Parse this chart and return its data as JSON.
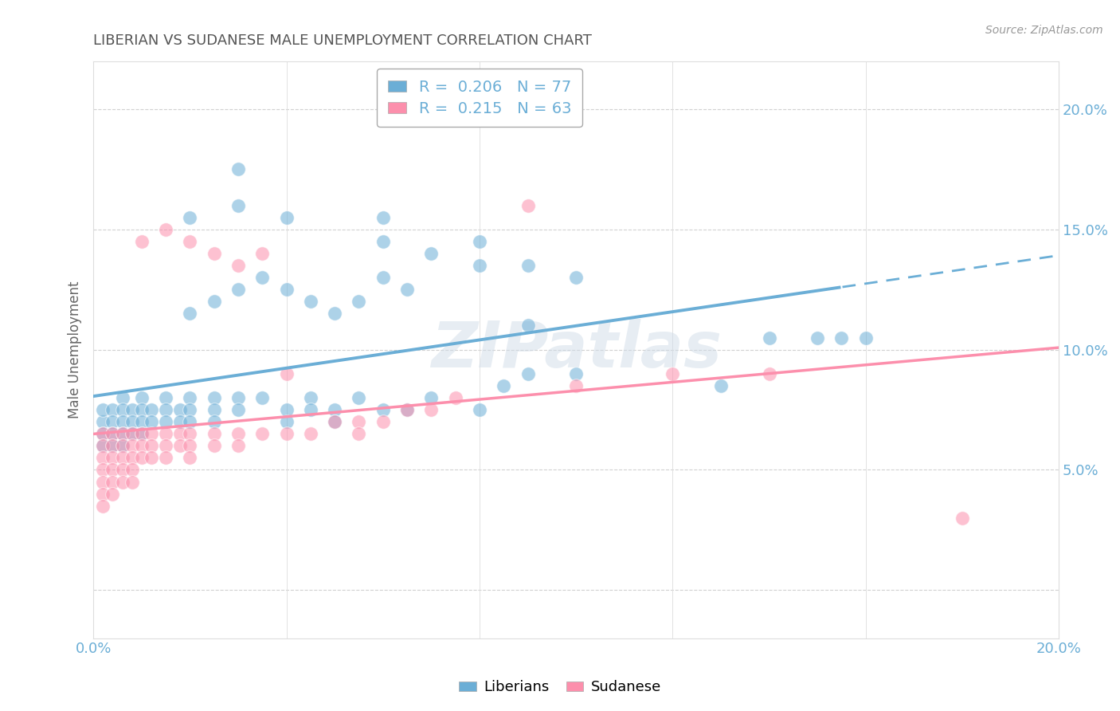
{
  "title": "LIBERIAN VS SUDANESE MALE UNEMPLOYMENT CORRELATION CHART",
  "source": "Source: ZipAtlas.com",
  "ylabel": "Male Unemployment",
  "xlim": [
    0.0,
    0.2
  ],
  "ylim": [
    -0.02,
    0.22
  ],
  "liberian_color": "#6baed6",
  "sudanese_color": "#fc8fac",
  "liberian_R": 0.206,
  "liberian_N": 77,
  "sudanese_R": 0.215,
  "sudanese_N": 63,
  "background_color": "#ffffff",
  "grid_color": "#cccccc",
  "title_color": "#555555",
  "tick_color": "#6baed6",
  "watermark": "ZIPatlas",
  "trendline_solid_end": 0.155,
  "liberian_points": [
    [
      0.002,
      0.07
    ],
    [
      0.002,
      0.075
    ],
    [
      0.002,
      0.065
    ],
    [
      0.002,
      0.06
    ],
    [
      0.004,
      0.075
    ],
    [
      0.004,
      0.07
    ],
    [
      0.004,
      0.065
    ],
    [
      0.004,
      0.06
    ],
    [
      0.006,
      0.08
    ],
    [
      0.006,
      0.075
    ],
    [
      0.006,
      0.07
    ],
    [
      0.006,
      0.065
    ],
    [
      0.006,
      0.06
    ],
    [
      0.008,
      0.075
    ],
    [
      0.008,
      0.07
    ],
    [
      0.008,
      0.065
    ],
    [
      0.01,
      0.08
    ],
    [
      0.01,
      0.075
    ],
    [
      0.01,
      0.07
    ],
    [
      0.01,
      0.065
    ],
    [
      0.012,
      0.075
    ],
    [
      0.012,
      0.07
    ],
    [
      0.015,
      0.08
    ],
    [
      0.015,
      0.075
    ],
    [
      0.015,
      0.07
    ],
    [
      0.018,
      0.075
    ],
    [
      0.018,
      0.07
    ],
    [
      0.02,
      0.08
    ],
    [
      0.02,
      0.075
    ],
    [
      0.02,
      0.07
    ],
    [
      0.025,
      0.08
    ],
    [
      0.025,
      0.075
    ],
    [
      0.025,
      0.07
    ],
    [
      0.03,
      0.08
    ],
    [
      0.03,
      0.075
    ],
    [
      0.035,
      0.08
    ],
    [
      0.04,
      0.075
    ],
    [
      0.04,
      0.07
    ],
    [
      0.045,
      0.08
    ],
    [
      0.045,
      0.075
    ],
    [
      0.05,
      0.075
    ],
    [
      0.05,
      0.07
    ],
    [
      0.055,
      0.08
    ],
    [
      0.06,
      0.075
    ],
    [
      0.065,
      0.075
    ],
    [
      0.07,
      0.08
    ],
    [
      0.08,
      0.075
    ],
    [
      0.085,
      0.085
    ],
    [
      0.09,
      0.09
    ],
    [
      0.1,
      0.09
    ],
    [
      0.13,
      0.085
    ],
    [
      0.02,
      0.115
    ],
    [
      0.025,
      0.12
    ],
    [
      0.03,
      0.125
    ],
    [
      0.035,
      0.13
    ],
    [
      0.04,
      0.125
    ],
    [
      0.045,
      0.12
    ],
    [
      0.05,
      0.115
    ],
    [
      0.055,
      0.12
    ],
    [
      0.06,
      0.13
    ],
    [
      0.065,
      0.125
    ],
    [
      0.08,
      0.135
    ],
    [
      0.02,
      0.155
    ],
    [
      0.03,
      0.16
    ],
    [
      0.04,
      0.155
    ],
    [
      0.06,
      0.145
    ],
    [
      0.07,
      0.14
    ],
    [
      0.09,
      0.135
    ],
    [
      0.1,
      0.13
    ],
    [
      0.03,
      0.175
    ],
    [
      0.06,
      0.155
    ],
    [
      0.08,
      0.145
    ],
    [
      0.09,
      0.11
    ],
    [
      0.14,
      0.105
    ],
    [
      0.15,
      0.105
    ],
    [
      0.155,
      0.105
    ],
    [
      0.16,
      0.105
    ]
  ],
  "sudanese_points": [
    [
      0.002,
      0.065
    ],
    [
      0.002,
      0.06
    ],
    [
      0.002,
      0.055
    ],
    [
      0.002,
      0.05
    ],
    [
      0.002,
      0.045
    ],
    [
      0.002,
      0.04
    ],
    [
      0.002,
      0.035
    ],
    [
      0.004,
      0.065
    ],
    [
      0.004,
      0.06
    ],
    [
      0.004,
      0.055
    ],
    [
      0.004,
      0.05
    ],
    [
      0.004,
      0.045
    ],
    [
      0.004,
      0.04
    ],
    [
      0.006,
      0.065
    ],
    [
      0.006,
      0.06
    ],
    [
      0.006,
      0.055
    ],
    [
      0.006,
      0.05
    ],
    [
      0.006,
      0.045
    ],
    [
      0.008,
      0.065
    ],
    [
      0.008,
      0.06
    ],
    [
      0.008,
      0.055
    ],
    [
      0.008,
      0.05
    ],
    [
      0.008,
      0.045
    ],
    [
      0.01,
      0.065
    ],
    [
      0.01,
      0.06
    ],
    [
      0.01,
      0.055
    ],
    [
      0.012,
      0.065
    ],
    [
      0.012,
      0.06
    ],
    [
      0.012,
      0.055
    ],
    [
      0.015,
      0.065
    ],
    [
      0.015,
      0.06
    ],
    [
      0.015,
      0.055
    ],
    [
      0.018,
      0.065
    ],
    [
      0.018,
      0.06
    ],
    [
      0.02,
      0.065
    ],
    [
      0.02,
      0.06
    ],
    [
      0.02,
      0.055
    ],
    [
      0.025,
      0.065
    ],
    [
      0.025,
      0.06
    ],
    [
      0.03,
      0.065
    ],
    [
      0.03,
      0.06
    ],
    [
      0.035,
      0.065
    ],
    [
      0.04,
      0.065
    ],
    [
      0.045,
      0.065
    ],
    [
      0.05,
      0.07
    ],
    [
      0.055,
      0.07
    ],
    [
      0.06,
      0.07
    ],
    [
      0.065,
      0.075
    ],
    [
      0.07,
      0.075
    ],
    [
      0.075,
      0.08
    ],
    [
      0.01,
      0.145
    ],
    [
      0.015,
      0.15
    ],
    [
      0.02,
      0.145
    ],
    [
      0.025,
      0.14
    ],
    [
      0.03,
      0.135
    ],
    [
      0.035,
      0.14
    ],
    [
      0.04,
      0.09
    ],
    [
      0.055,
      0.065
    ],
    [
      0.09,
      0.16
    ],
    [
      0.1,
      0.085
    ],
    [
      0.12,
      0.09
    ],
    [
      0.14,
      0.09
    ],
    [
      0.18,
      0.03
    ]
  ]
}
